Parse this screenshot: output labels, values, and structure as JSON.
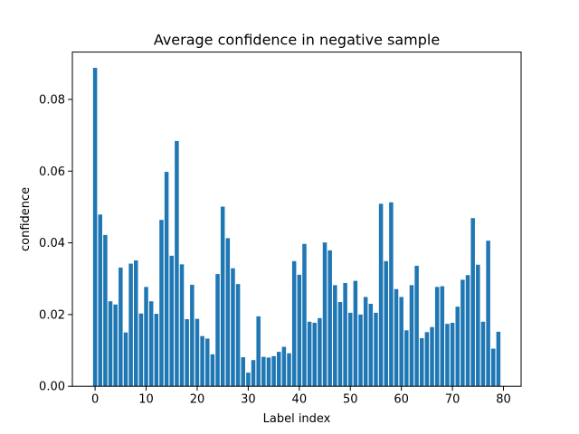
{
  "chart_data": {
    "type": "bar",
    "title": "Average confidence in negative sample",
    "xlabel": "Label index",
    "ylabel": "confidence",
    "x": [
      0,
      1,
      2,
      3,
      4,
      5,
      6,
      7,
      8,
      9,
      10,
      11,
      12,
      13,
      14,
      15,
      16,
      17,
      18,
      19,
      20,
      21,
      22,
      23,
      24,
      25,
      26,
      27,
      28,
      29,
      30,
      31,
      32,
      33,
      34,
      35,
      36,
      37,
      38,
      39,
      40,
      41,
      42,
      43,
      44,
      45,
      46,
      47,
      48,
      49,
      50,
      51,
      52,
      53,
      54,
      55,
      56,
      57,
      58,
      59,
      60,
      61,
      62,
      63,
      64,
      65,
      66,
      67,
      68,
      69,
      70,
      71,
      72,
      73,
      74,
      75,
      76,
      77,
      78,
      79
    ],
    "values": [
      0.0888,
      0.0479,
      0.0422,
      0.0237,
      0.0228,
      0.0331,
      0.015,
      0.0342,
      0.0351,
      0.0203,
      0.0277,
      0.0237,
      0.0202,
      0.0464,
      0.0598,
      0.0364,
      0.0684,
      0.034,
      0.0187,
      0.0283,
      0.0188,
      0.014,
      0.0133,
      0.0089,
      0.0313,
      0.0501,
      0.0413,
      0.0329,
      0.0285,
      0.0081,
      0.0038,
      0.0073,
      0.0195,
      0.0082,
      0.008,
      0.0084,
      0.0096,
      0.011,
      0.0092,
      0.0349,
      0.0311,
      0.0397,
      0.018,
      0.0177,
      0.019,
      0.0401,
      0.0379,
      0.0282,
      0.0235,
      0.0288,
      0.0205,
      0.0294,
      0.02,
      0.0249,
      0.023,
      0.0205,
      0.0509,
      0.0349,
      0.0513,
      0.0271,
      0.0249,
      0.0156,
      0.0282,
      0.0336,
      0.0134,
      0.0151,
      0.0165,
      0.0277,
      0.0279,
      0.0174,
      0.0177,
      0.0222,
      0.0297,
      0.031,
      0.0469,
      0.0339,
      0.018,
      0.0406,
      0.0105,
      0.0152
    ],
    "xlim": [
      -4.45,
      83.45
    ],
    "ylim": [
      0,
      0.0932
    ],
    "xticks": [
      0,
      10,
      20,
      30,
      40,
      50,
      60,
      70,
      80
    ],
    "xtick_labels": [
      "0",
      "10",
      "20",
      "30",
      "40",
      "50",
      "60",
      "70",
      "80"
    ],
    "yticks": [
      0,
      0.02,
      0.04,
      0.06,
      0.08
    ],
    "ytick_labels": [
      "0.00",
      "0.02",
      "0.04",
      "0.06",
      "0.08"
    ],
    "bar_color": "#1f77b4",
    "grid": false,
    "legend": "none"
  }
}
